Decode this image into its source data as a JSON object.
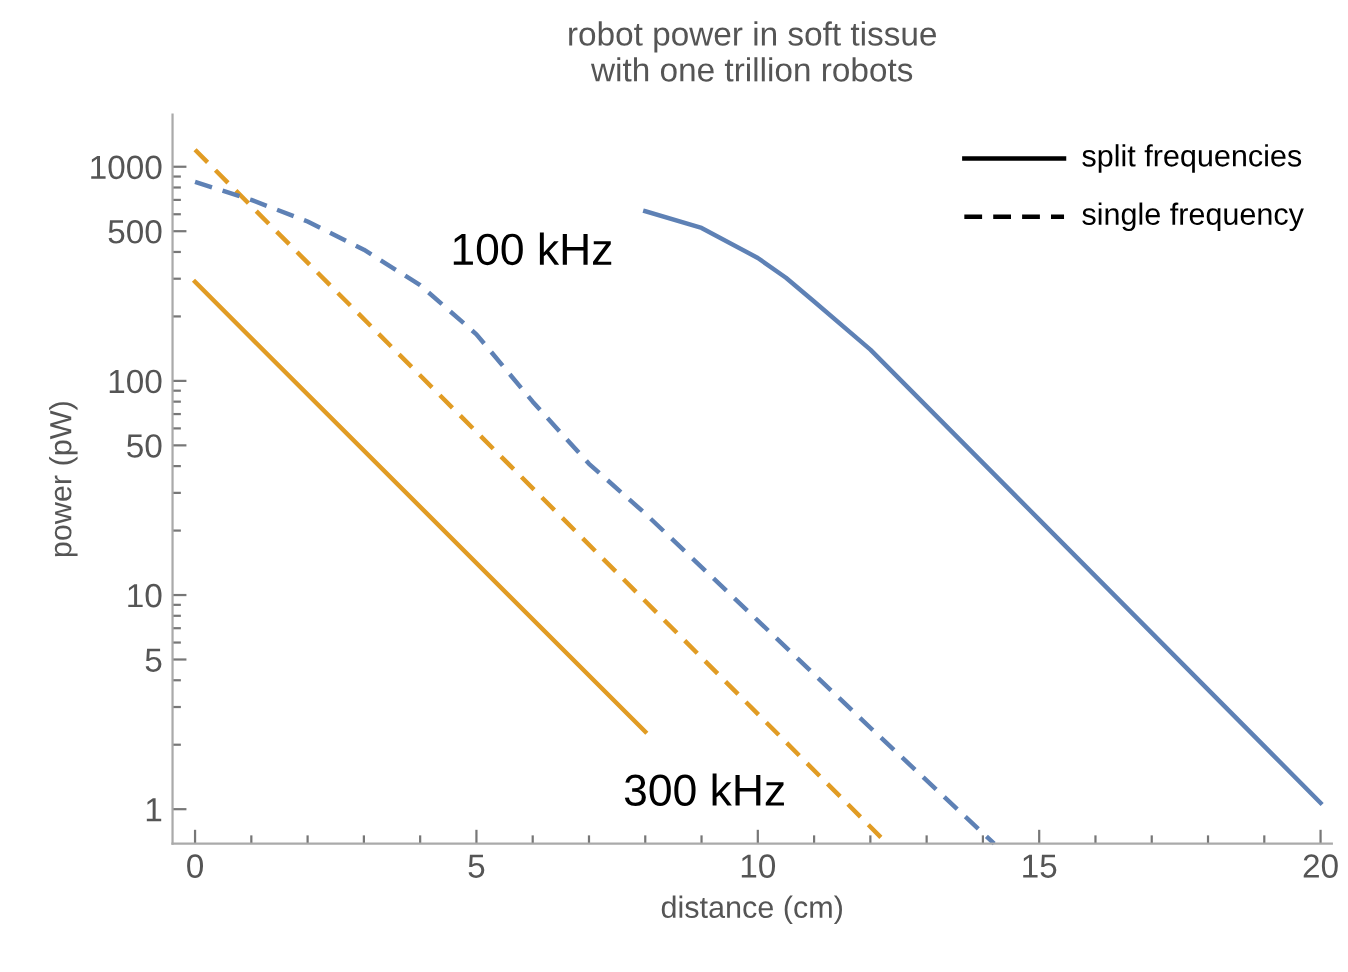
{
  "chart_data": {
    "type": "line",
    "title": "robot power in soft tissue\nwith one trillion robots",
    "xlabel": "distance (cm)",
    "ylabel": "power (pW)",
    "log": "y",
    "grid": false,
    "marker": "none",
    "xlim": [
      -0.4,
      20.2
    ],
    "ylim": [
      0.69,
      1750
    ],
    "xticks": [
      0,
      {
        "value": 1,
        "label": null
      },
      {
        "value": 2,
        "label": null
      },
      {
        "value": 3,
        "label": null
      },
      {
        "value": 4,
        "label": null
      },
      5,
      {
        "value": 6,
        "label": null
      },
      {
        "value": 7,
        "label": null
      },
      {
        "value": 8,
        "label": null
      },
      {
        "value": 9,
        "label": null
      },
      10,
      {
        "value": 11,
        "label": null
      },
      {
        "value": 12,
        "label": null
      },
      {
        "value": 13,
        "label": null
      },
      {
        "value": 14,
        "label": null
      },
      15,
      {
        "value": 16,
        "label": null
      },
      {
        "value": 17,
        "label": null
      },
      {
        "value": 18,
        "label": null
      },
      {
        "value": 19,
        "label": null
      },
      20
    ],
    "yticks": [
      1,
      {
        "value": 2,
        "label": null
      },
      {
        "value": 3,
        "label": null
      },
      {
        "value": 4,
        "label": null
      },
      5,
      {
        "value": 6,
        "label": null
      },
      {
        "value": 7,
        "label": null
      },
      {
        "value": 8,
        "label": null
      },
      {
        "value": 9,
        "label": null
      },
      10,
      {
        "value": 20,
        "label": null
      },
      {
        "value": 30,
        "label": null
      },
      {
        "value": 40,
        "label": null
      },
      50,
      {
        "value": 60,
        "label": null
      },
      {
        "value": 70,
        "label": null
      },
      {
        "value": 80,
        "label": null
      },
      {
        "value": 90,
        "label": null
      },
      100,
      {
        "value": 200,
        "label": null
      },
      {
        "value": 300,
        "label": null
      },
      {
        "value": 400,
        "label": null
      },
      500,
      {
        "value": 600,
        "label": null
      },
      {
        "value": 700,
        "label": null
      },
      {
        "value": 800,
        "label": null
      },
      {
        "value": 900,
        "label": null
      },
      1000
    ],
    "series": [
      {
        "color": "#e19c24",
        "line_style": "solid",
        "x": [
          0,
          8
        ],
        "values": [
          290,
          2.3
        ]
      },
      {
        "color": "#e19c24",
        "line_style": "dashed",
        "x": [
          0,
          12.3
        ],
        "values": [
          1200,
          0.69
        ]
      },
      {
        "color": "#5e81b5",
        "line_style": "solid",
        "x": [
          8,
          9,
          10,
          10.5,
          11,
          12,
          15,
          20
        ],
        "values": [
          620,
          518,
          375,
          303,
          235,
          140,
          22.5,
          1.07
        ]
      },
      {
        "color": "#5e81b5",
        "line_style": "dashed",
        "x": [
          0,
          1,
          2,
          3,
          4,
          5,
          6,
          7,
          8,
          10,
          12,
          14.2
        ],
        "values": [
          850,
          700,
          555,
          410,
          280,
          165,
          80,
          41,
          24,
          7.6,
          2.4,
          0.69
        ]
      }
    ],
    "annotations": [
      "100 kHz",
      "300 kHz",
      "split frequencies",
      "single frequency"
    ]
  }
}
